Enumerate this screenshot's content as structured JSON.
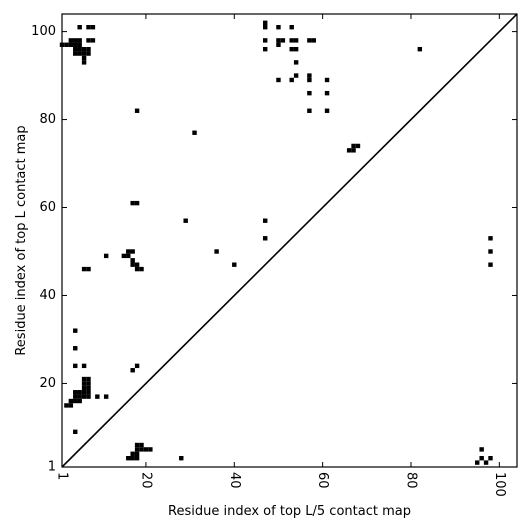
{
  "chart_data": {
    "type": "heatmap",
    "title": "",
    "xlabel": "Residue index of top L/5 contact map",
    "ylabel": "Residue index of top L contact map",
    "xlim": [
      1,
      104
    ],
    "ylim": [
      1,
      104
    ],
    "xticks": [
      {
        "value": 1,
        "label": "1"
      },
      {
        "value": 20,
        "label": "20"
      },
      {
        "value": 40,
        "label": "40"
      },
      {
        "value": 60,
        "label": "60"
      },
      {
        "value": 80,
        "label": "80"
      },
      {
        "value": 100,
        "label": "100"
      }
    ],
    "yticks": [
      {
        "value": 1,
        "label": "1"
      },
      {
        "value": 20,
        "label": "20"
      },
      {
        "value": 40,
        "label": "40"
      },
      {
        "value": 60,
        "label": "60"
      },
      {
        "value": 80,
        "label": "80"
      },
      {
        "value": 100,
        "label": "100"
      }
    ],
    "xtick_rotation": -90,
    "diagonal": true,
    "cell_color": "#000000",
    "points": [
      [
        1,
        97
      ],
      [
        2,
        97
      ],
      [
        3,
        97
      ],
      [
        3,
        98
      ],
      [
        4,
        98
      ],
      [
        4,
        97
      ],
      [
        4,
        96
      ],
      [
        4,
        95
      ],
      [
        5,
        98
      ],
      [
        5,
        97
      ],
      [
        5,
        96
      ],
      [
        5,
        95
      ],
      [
        6,
        96
      ],
      [
        6,
        95
      ],
      [
        6,
        94
      ],
      [
        6,
        93
      ],
      [
        7,
        96
      ],
      [
        7,
        95
      ],
      [
        7,
        98
      ],
      [
        8,
        98
      ],
      [
        5,
        101
      ],
      [
        7,
        101
      ],
      [
        8,
        101
      ],
      [
        18,
        82
      ],
      [
        31,
        77
      ],
      [
        47,
        102
      ],
      [
        47,
        101
      ],
      [
        47,
        98
      ],
      [
        47,
        96
      ],
      [
        50,
        101
      ],
      [
        50,
        98
      ],
      [
        50,
        97
      ],
      [
        51,
        98
      ],
      [
        53,
        101
      ],
      [
        53,
        98
      ],
      [
        54,
        98
      ],
      [
        53,
        96
      ],
      [
        54,
        96
      ],
      [
        54,
        93
      ],
      [
        50,
        89
      ],
      [
        53,
        89
      ],
      [
        54,
        90
      ],
      [
        57,
        90
      ],
      [
        57,
        89
      ],
      [
        57,
        86
      ],
      [
        57,
        82
      ],
      [
        57,
        98
      ],
      [
        58,
        98
      ],
      [
        61,
        89
      ],
      [
        61,
        86
      ],
      [
        61,
        82
      ],
      [
        82,
        96
      ],
      [
        17,
        61
      ],
      [
        18,
        61
      ],
      [
        29,
        57
      ],
      [
        47,
        57
      ],
      [
        47,
        53
      ],
      [
        36,
        50
      ],
      [
        40,
        47
      ],
      [
        16,
        50
      ],
      [
        17,
        50
      ],
      [
        15,
        49
      ],
      [
        16,
        49
      ],
      [
        17,
        48
      ],
      [
        17,
        47
      ],
      [
        18,
        47
      ],
      [
        18,
        46
      ],
      [
        19,
        46
      ],
      [
        6,
        46
      ],
      [
        7,
        46
      ],
      [
        11,
        49
      ],
      [
        66,
        73
      ],
      [
        67,
        73
      ],
      [
        67,
        74
      ],
      [
        68,
        74
      ],
      [
        98,
        53
      ],
      [
        98,
        50
      ],
      [
        98,
        47
      ],
      [
        4,
        32
      ],
      [
        4,
        28
      ],
      [
        4,
        24
      ],
      [
        6,
        24
      ],
      [
        18,
        24
      ],
      [
        17,
        23
      ],
      [
        6,
        21
      ],
      [
        7,
        21
      ],
      [
        6,
        20
      ],
      [
        7,
        20
      ],
      [
        6,
        19
      ],
      [
        7,
        19
      ],
      [
        4,
        18
      ],
      [
        5,
        18
      ],
      [
        6,
        18
      ],
      [
        7,
        18
      ],
      [
        4,
        17
      ],
      [
        5,
        17
      ],
      [
        6,
        17
      ],
      [
        7,
        17
      ],
      [
        9,
        17
      ],
      [
        11,
        17
      ],
      [
        4,
        16
      ],
      [
        5,
        16
      ],
      [
        3,
        16
      ],
      [
        2,
        15
      ],
      [
        3,
        15
      ],
      [
        4,
        9
      ],
      [
        18,
        6
      ],
      [
        19,
        6
      ],
      [
        18,
        5
      ],
      [
        19,
        5
      ],
      [
        20,
        5
      ],
      [
        21,
        5
      ],
      [
        17,
        4
      ],
      [
        18,
        4
      ],
      [
        16,
        3
      ],
      [
        17,
        3
      ],
      [
        18,
        3
      ],
      [
        28,
        3
      ],
      [
        96,
        5
      ],
      [
        96,
        3
      ],
      [
        95,
        2
      ],
      [
        97,
        2
      ],
      [
        98,
        3
      ]
    ]
  }
}
